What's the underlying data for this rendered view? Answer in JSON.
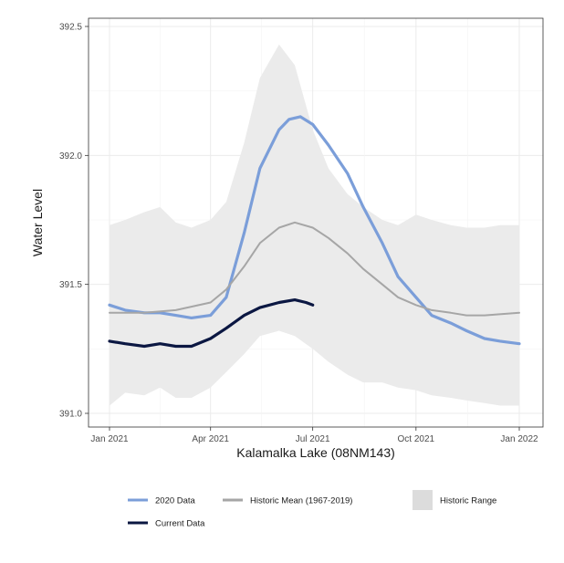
{
  "chart_data": {
    "type": "line",
    "title": "",
    "xlabel": "Kalamalka Lake (08NM143)",
    "ylabel": "Water Level",
    "x_domain": [
      "2021-01-01",
      "2022-01-01"
    ],
    "ylim": [
      390.97,
      392.53
    ],
    "x_ticks": [
      {
        "date": "2021-01-01",
        "label": "Jan 2021"
      },
      {
        "date": "2021-04-01",
        "label": "Apr 2021"
      },
      {
        "date": "2021-07-01",
        "label": "Jul 2021"
      },
      {
        "date": "2021-10-01",
        "label": "Oct 2021"
      },
      {
        "date": "2022-01-01",
        "label": "Jan 2022"
      }
    ],
    "y_ticks": [
      {
        "value": 391.0,
        "label": "391.0"
      },
      {
        "value": 391.5,
        "label": "391.5"
      },
      {
        "value": 392.0,
        "label": "392.0"
      },
      {
        "value": 392.5,
        "label": "392.5"
      }
    ],
    "grid": true,
    "legend_position": "bottom",
    "historic_range": {
      "name": "Historic Range",
      "color": "#ebebeb",
      "x": [
        "2021-01-01",
        "2021-01-15",
        "2021-02-01",
        "2021-02-15",
        "2021-03-01",
        "2021-03-15",
        "2021-04-01",
        "2021-04-15",
        "2021-05-01",
        "2021-05-15",
        "2021-06-01",
        "2021-06-15",
        "2021-07-01",
        "2021-07-15",
        "2021-08-01",
        "2021-08-15",
        "2021-09-01",
        "2021-09-15",
        "2021-10-01",
        "2021-10-15",
        "2021-11-01",
        "2021-11-15",
        "2021-12-01",
        "2021-12-15",
        "2022-01-01"
      ],
      "upper": [
        391.73,
        391.75,
        391.78,
        391.8,
        391.74,
        391.72,
        391.75,
        391.82,
        392.05,
        392.3,
        392.43,
        392.35,
        392.1,
        391.95,
        391.85,
        391.8,
        391.75,
        391.73,
        391.77,
        391.75,
        391.73,
        391.72,
        391.72,
        391.73,
        391.73
      ],
      "lower": [
        391.03,
        391.08,
        391.07,
        391.1,
        391.06,
        391.06,
        391.1,
        391.16,
        391.23,
        391.3,
        391.32,
        391.3,
        391.25,
        391.2,
        391.15,
        391.12,
        391.12,
        391.1,
        391.09,
        391.07,
        391.06,
        391.05,
        391.04,
        391.03,
        391.03
      ]
    },
    "series": [
      {
        "name": "2020 Data",
        "color": "#7b9ed9",
        "x": [
          "2021-01-01",
          "2021-01-15",
          "2021-02-01",
          "2021-02-15",
          "2021-03-01",
          "2021-03-15",
          "2021-04-01",
          "2021-04-15",
          "2021-05-01",
          "2021-05-15",
          "2021-06-01",
          "2021-06-10",
          "2021-06-20",
          "2021-07-01",
          "2021-07-15",
          "2021-08-01",
          "2021-08-15",
          "2021-09-01",
          "2021-09-15",
          "2021-10-01",
          "2021-10-15",
          "2021-11-01",
          "2021-11-15",
          "2021-12-01",
          "2021-12-15",
          "2022-01-01"
        ],
        "y": [
          391.42,
          391.4,
          391.39,
          391.39,
          391.38,
          391.37,
          391.38,
          391.45,
          391.7,
          391.95,
          392.1,
          392.14,
          392.15,
          392.12,
          392.04,
          391.93,
          391.8,
          391.66,
          391.53,
          391.45,
          391.38,
          391.35,
          391.32,
          391.29,
          391.28,
          391.27
        ]
      },
      {
        "name": "Historic Mean (1967-2019)",
        "color": "#a6a6a6",
        "x": [
          "2021-01-01",
          "2021-02-01",
          "2021-03-01",
          "2021-04-01",
          "2021-04-15",
          "2021-05-01",
          "2021-05-15",
          "2021-06-01",
          "2021-06-15",
          "2021-07-01",
          "2021-07-15",
          "2021-08-01",
          "2021-08-15",
          "2021-09-01",
          "2021-09-15",
          "2021-10-01",
          "2021-10-15",
          "2021-11-01",
          "2021-11-15",
          "2021-12-01",
          "2022-01-01"
        ],
        "y": [
          391.39,
          391.39,
          391.4,
          391.43,
          391.48,
          391.57,
          391.66,
          391.72,
          391.74,
          391.72,
          391.68,
          391.62,
          391.56,
          391.5,
          391.45,
          391.42,
          391.4,
          391.39,
          391.38,
          391.38,
          391.39
        ]
      },
      {
        "name": "Current Data",
        "color": "#0b1742",
        "x": [
          "2021-01-01",
          "2021-01-15",
          "2021-02-01",
          "2021-02-15",
          "2021-03-01",
          "2021-03-15",
          "2021-04-01",
          "2021-04-15",
          "2021-05-01",
          "2021-05-15",
          "2021-06-01",
          "2021-06-15",
          "2021-06-25",
          "2021-07-01"
        ],
        "y": [
          391.28,
          391.27,
          391.26,
          391.27,
          391.26,
          391.26,
          391.29,
          391.33,
          391.38,
          391.41,
          391.43,
          391.44,
          391.43,
          391.42
        ]
      }
    ]
  },
  "legend": {
    "items": [
      {
        "label": "2020 Data",
        "color": "#7b9ed9",
        "kind": "line"
      },
      {
        "label": "Historic Mean (1967-2019)",
        "color": "#a6a6a6",
        "kind": "line"
      },
      {
        "label": "Historic Range",
        "color": "#dcdcdc",
        "kind": "box"
      },
      {
        "label": "Current Data",
        "color": "#0b1742",
        "kind": "line"
      }
    ]
  }
}
